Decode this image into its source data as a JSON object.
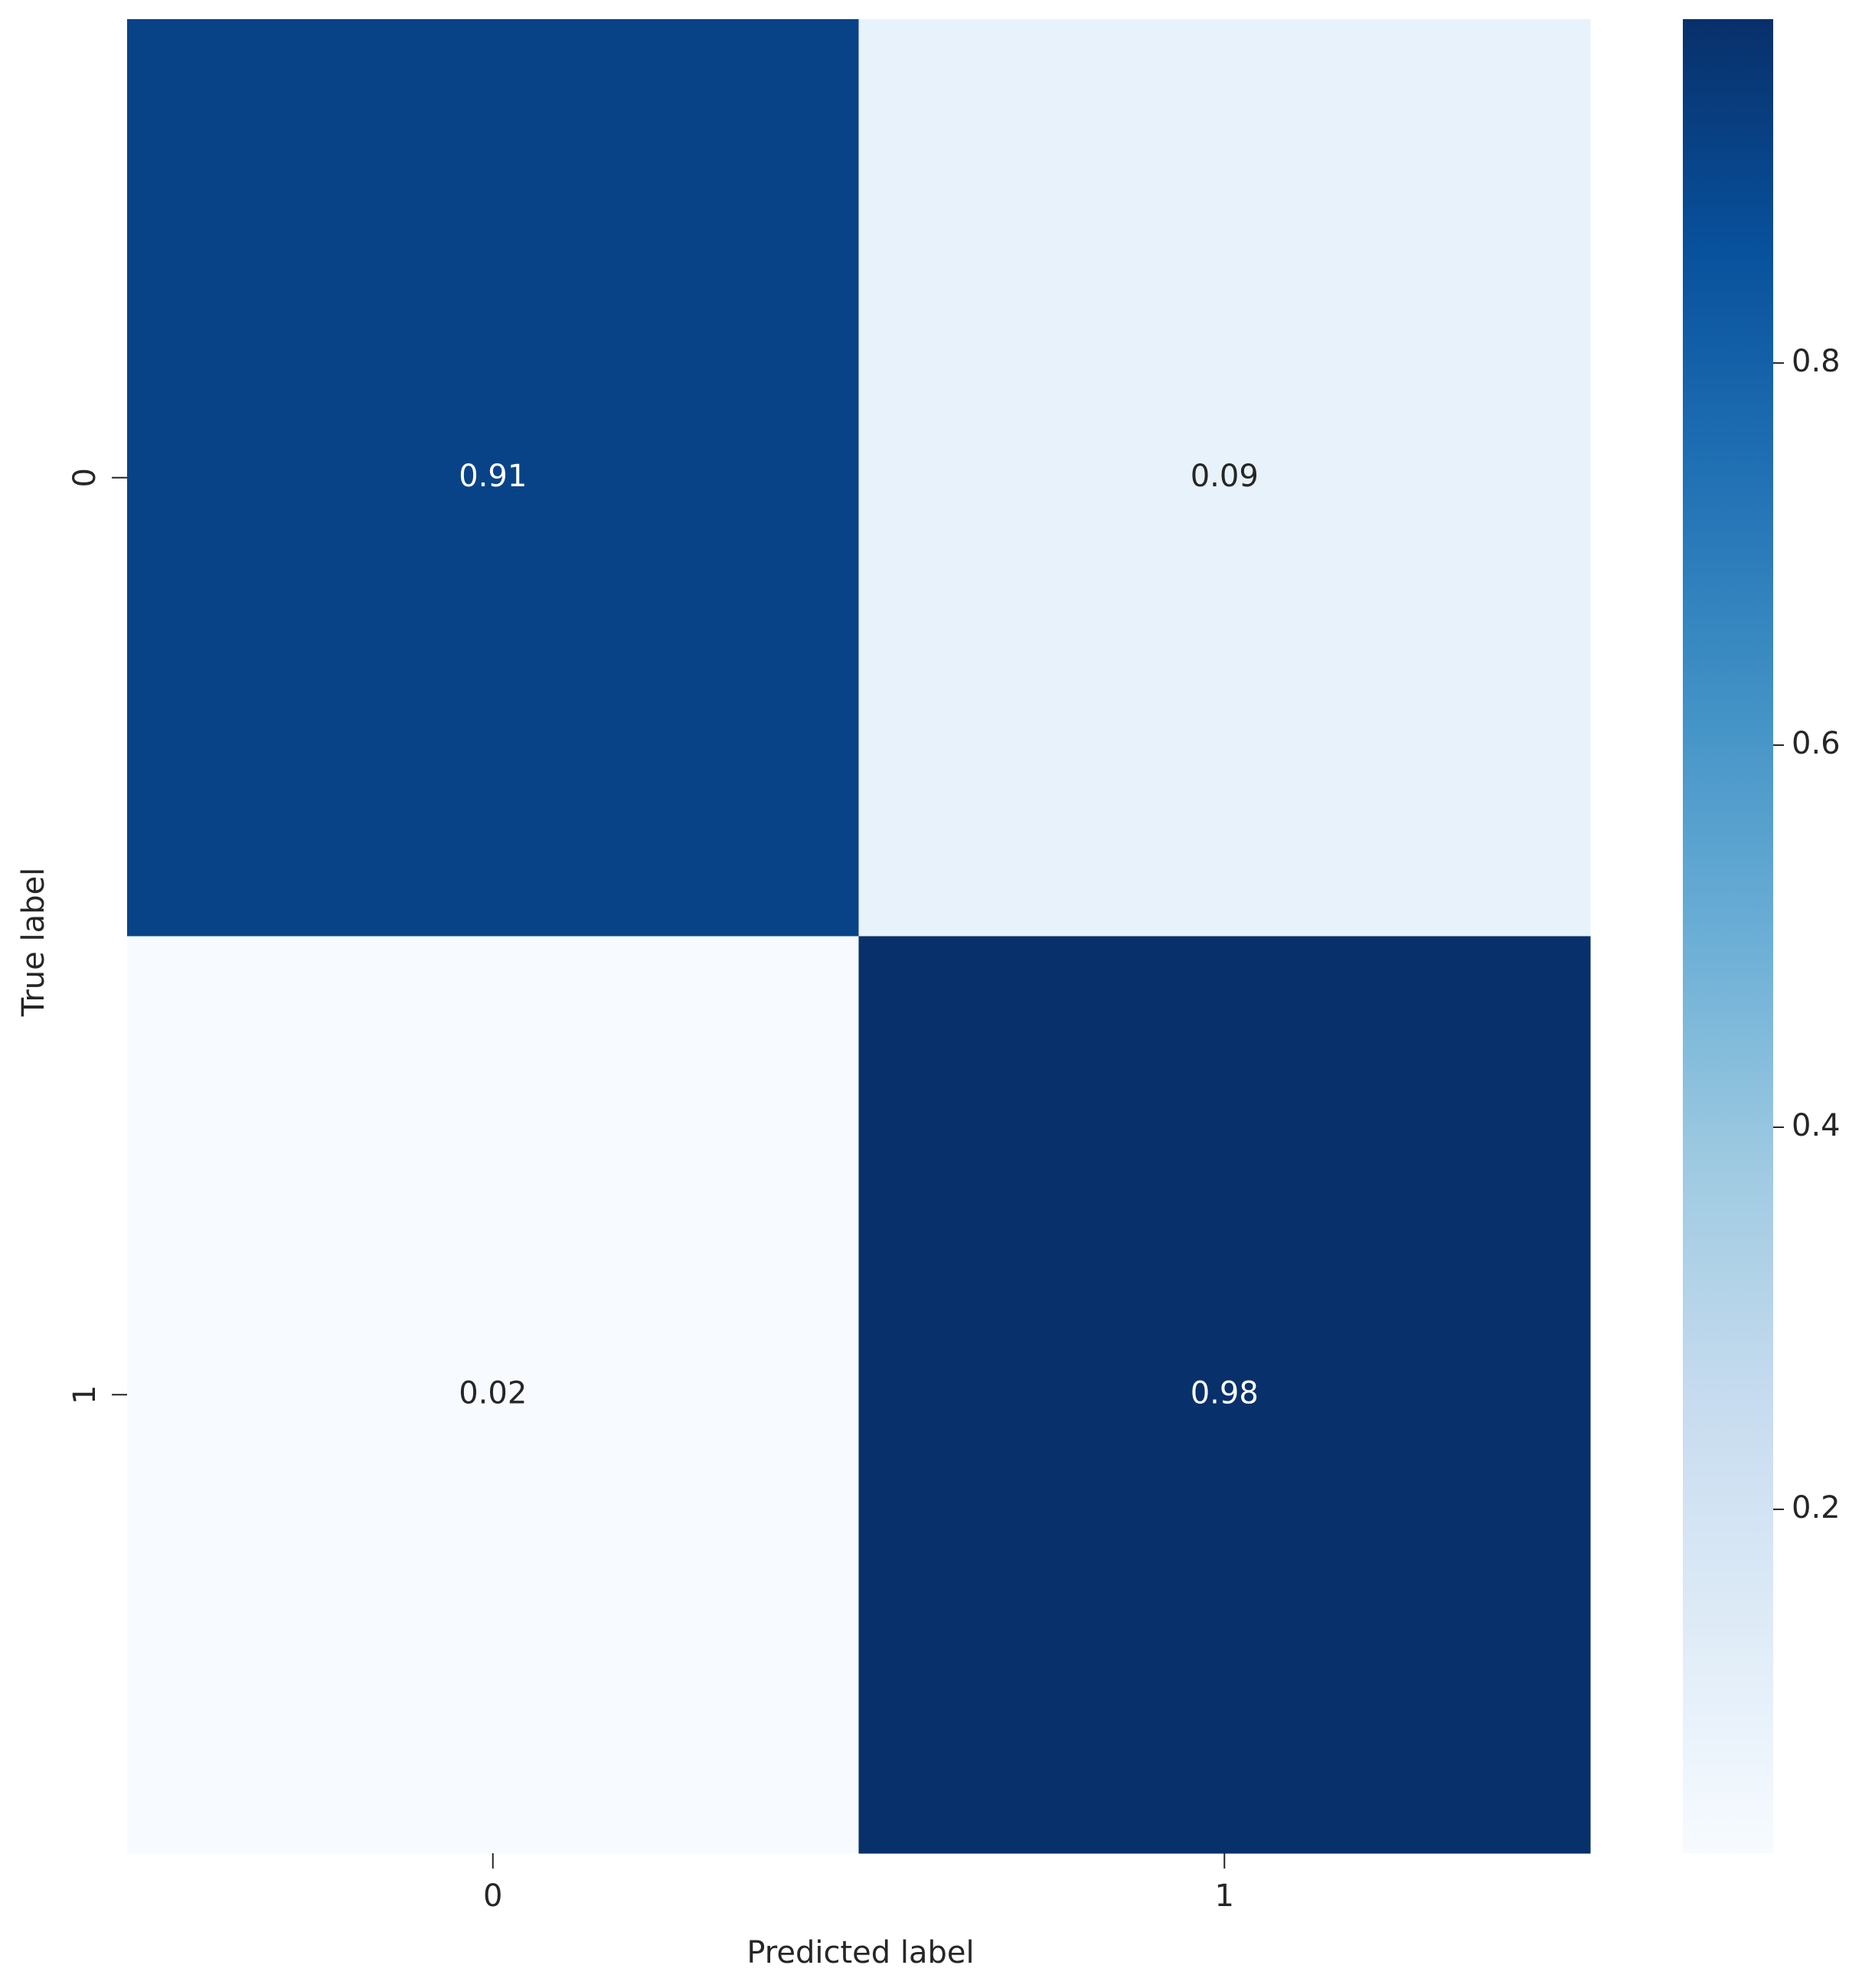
{
  "chart_data": {
    "type": "heatmap",
    "x_label": "Predicted label",
    "y_label": "True label",
    "x_categories": [
      "0",
      "1"
    ],
    "y_categories": [
      "0",
      "1"
    ],
    "values": [
      [
        0.91,
        0.09
      ],
      [
        0.02,
        0.98
      ]
    ],
    "colormap": "Blues",
    "clim": [
      0.02,
      0.98
    ],
    "colorbar_ticks": [
      0.2,
      0.4,
      0.6,
      0.8
    ]
  }
}
